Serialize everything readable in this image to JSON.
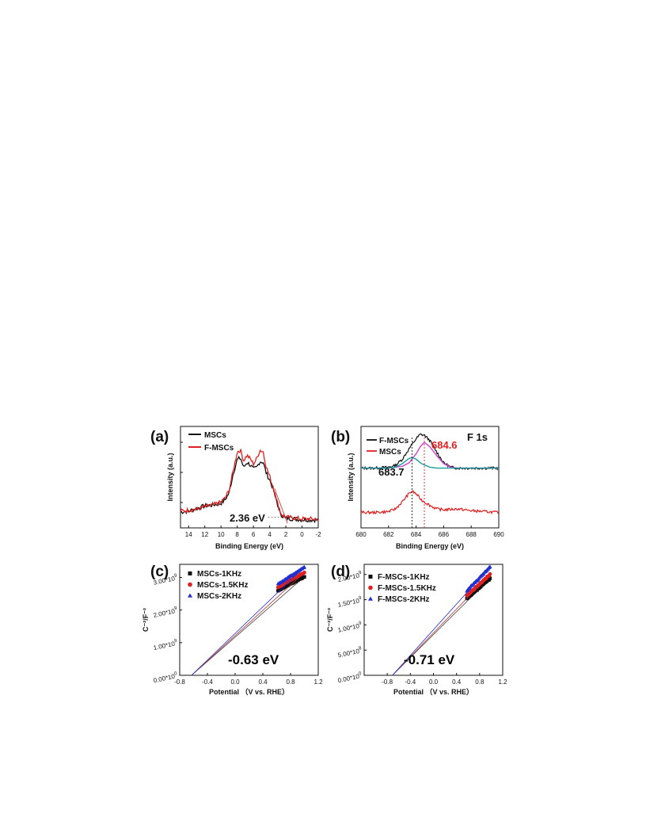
{
  "chart_data": [
    {
      "panel": "(a)",
      "type": "line",
      "xlabel": "Binding Energy (eV)",
      "ylabel": "Intensity (a.u.)",
      "xlim": [
        15,
        -2
      ],
      "x_reversed": true,
      "xticks": [
        "14",
        "12",
        "10",
        "8",
        "6",
        "4",
        "2",
        "0",
        "-2"
      ],
      "legend_position": "top-left",
      "annotation": "2.36 eV",
      "series": [
        {
          "name": "MSCs",
          "color": "#111111",
          "x": [
            15,
            14,
            13,
            12,
            11,
            10,
            9.5,
            9,
            8.5,
            8,
            7.6,
            7.2,
            6.8,
            6.4,
            6.0,
            5.6,
            5.2,
            4.8,
            4.4,
            4.0,
            3.6,
            3.2,
            2.8,
            2.4,
            2.0,
            1.0,
            0,
            -1,
            -2
          ],
          "y": [
            0.11,
            0.12,
            0.15,
            0.18,
            0.19,
            0.21,
            0.25,
            0.33,
            0.55,
            0.71,
            0.73,
            0.62,
            0.68,
            0.65,
            0.6,
            0.62,
            0.69,
            0.68,
            0.55,
            0.48,
            0.38,
            0.26,
            0.12,
            0.06,
            0.04,
            0.03,
            0.02,
            0.02,
            0.02
          ]
        },
        {
          "name": "F-MSCs",
          "color": "#e02020",
          "x": [
            15,
            14,
            13,
            12,
            11,
            10,
            9.5,
            9,
            8.5,
            8,
            7.6,
            7.2,
            6.8,
            6.4,
            6.0,
            5.6,
            5.2,
            4.8,
            4.4,
            4.0,
            3.6,
            3.2,
            2.8,
            2.4,
            2.0,
            1.0,
            0,
            -1,
            -2
          ],
          "y": [
            0.12,
            0.13,
            0.14,
            0.17,
            0.19,
            0.22,
            0.27,
            0.36,
            0.58,
            0.8,
            0.82,
            0.7,
            0.76,
            0.72,
            0.66,
            0.72,
            0.82,
            0.8,
            0.62,
            0.52,
            0.4,
            0.27,
            0.13,
            0.07,
            0.05,
            0.04,
            0.03,
            0.03,
            0.03
          ]
        }
      ]
    },
    {
      "panel": "(b)",
      "type": "line",
      "xlabel": "Binding Energy (eV)",
      "ylabel": "Intensity (a.u.)",
      "xlim": [
        680,
        690
      ],
      "xticks": [
        "680",
        "682",
        "684",
        "686",
        "688",
        "690"
      ],
      "title": "F 1s",
      "legend_position": "top-left",
      "peaks": [
        {
          "label": "684.6",
          "x": 684.6,
          "color": "#e02020"
        },
        {
          "label": "683.7",
          "x": 683.7,
          "color": "#111111"
        }
      ],
      "series": [
        {
          "name": "F-MSCs",
          "color": "#111111",
          "kind": "raw",
          "x": [
            680,
            681,
            682,
            682.5,
            683,
            683.5,
            684,
            684.3,
            684.6,
            685,
            685.5,
            686,
            686.5,
            687,
            688,
            689,
            690
          ],
          "y": [
            0.62,
            0.62,
            0.63,
            0.65,
            0.72,
            0.84,
            0.95,
            1.0,
            0.99,
            0.93,
            0.8,
            0.68,
            0.63,
            0.62,
            0.62,
            0.62,
            0.62
          ]
        },
        {
          "name": "",
          "color": "#d040d0",
          "kind": "fit",
          "x": [
            680,
            682,
            683,
            683.5,
            684,
            684.3,
            684.6,
            685,
            685.5,
            686,
            686.5,
            687,
            688,
            690
          ],
          "y": [
            0.62,
            0.62,
            0.64,
            0.68,
            0.78,
            0.86,
            0.91,
            0.86,
            0.76,
            0.67,
            0.63,
            0.62,
            0.62,
            0.62
          ]
        },
        {
          "name": "",
          "color": "#1a9e9e",
          "kind": "fit",
          "x": [
            680,
            682,
            682.5,
            683,
            683.4,
            683.7,
            684,
            684.4,
            685,
            685.5,
            686,
            688,
            690
          ],
          "y": [
            0.62,
            0.62,
            0.63,
            0.67,
            0.72,
            0.74,
            0.72,
            0.67,
            0.63,
            0.62,
            0.62,
            0.62,
            0.62
          ]
        },
        {
          "name": "MSCs",
          "color": "#e02020",
          "kind": "raw",
          "x": [
            680,
            681,
            682,
            682.5,
            683,
            683.4,
            683.7,
            684,
            684.4,
            685,
            685.5,
            686,
            687,
            688,
            689,
            690
          ],
          "y": [
            0.12,
            0.12,
            0.13,
            0.16,
            0.24,
            0.32,
            0.36,
            0.33,
            0.26,
            0.2,
            0.16,
            0.15,
            0.16,
            0.14,
            0.13,
            0.12
          ]
        }
      ]
    },
    {
      "panel": "(c)",
      "type": "scatter",
      "xlabel": "Potential （V vs. RHE）",
      "ylabel": "C⁻²/F⁻²",
      "xlim": [
        -0.8,
        1.2
      ],
      "ylim": [
        0,
        3.4
      ],
      "xticks": [
        "-0.8",
        "-0.4",
        "0.0",
        "0.4",
        "0.8",
        "1.2"
      ],
      "yticks": [
        {
          "mantissa": "0.00*10",
          "exp": "0",
          "v": 0
        },
        {
          "mantissa": "1.00*10",
          "exp": "9",
          "v": 1
        },
        {
          "mantissa": "2.00*10",
          "exp": "9",
          "v": 2
        },
        {
          "mantissa": "3.00*10",
          "exp": "9",
          "v": 3
        }
      ],
      "annotation": "-0.63 eV",
      "intercept": -0.63,
      "legend_position": "top-left",
      "series": [
        {
          "name": "MSCs-1KHz",
          "color": "#111111",
          "marker": "square",
          "x_range": [
            0.62,
            1.0
          ],
          "y_range": [
            2.6,
            3.02
          ]
        },
        {
          "name": "MSCs-1.5KHz",
          "color": "#e02020",
          "marker": "circle",
          "x_range": [
            0.62,
            1.0
          ],
          "y_range": [
            2.7,
            3.15
          ]
        },
        {
          "name": "MSCs-2KHz",
          "color": "#2030d0",
          "marker": "triangle",
          "x_range": [
            0.62,
            1.0
          ],
          "y_range": [
            2.8,
            3.32
          ]
        }
      ]
    },
    {
      "panel": "(d)",
      "type": "scatter",
      "xlabel": "Potential （V vs. RHE）",
      "ylabel": "C⁻²/F⁻²",
      "xlim": [
        -1.2,
        1.2
      ],
      "ylim": [
        0,
        2.2
      ],
      "xticks": [
        "-0.8",
        "-0.4",
        "0.0",
        "0.4",
        "0.8",
        "1.2"
      ],
      "yticks": [
        {
          "mantissa": "0.00*10",
          "exp": "0",
          "v": 0
        },
        {
          "mantissa": "5.00*10",
          "exp": "8",
          "v": 0.5
        },
        {
          "mantissa": "1.00*10",
          "exp": "9",
          "v": 1.0
        },
        {
          "mantissa": "1.50*10",
          "exp": "9",
          "v": 1.5
        },
        {
          "mantissa": "2.00*10",
          "exp": "9",
          "v": 2.0
        }
      ],
      "annotation": "-0.71 eV",
      "intercept": -0.71,
      "legend_position": "top-left",
      "series": [
        {
          "name": "F-MSCs-1KHz",
          "color": "#111111",
          "marker": "square",
          "x_range": [
            0.58,
            0.98
          ],
          "y_range": [
            1.52,
            1.92
          ]
        },
        {
          "name": "F-MSCs-1.5KHz",
          "color": "#e02020",
          "marker": "circle",
          "x_range": [
            0.58,
            0.98
          ],
          "y_range": [
            1.58,
            2.0
          ]
        },
        {
          "name": "F-MSCs-2KHz",
          "color": "#2030d0",
          "marker": "triangle",
          "x_range": [
            0.58,
            0.98
          ],
          "y_range": [
            1.68,
            2.15
          ]
        }
      ]
    }
  ]
}
